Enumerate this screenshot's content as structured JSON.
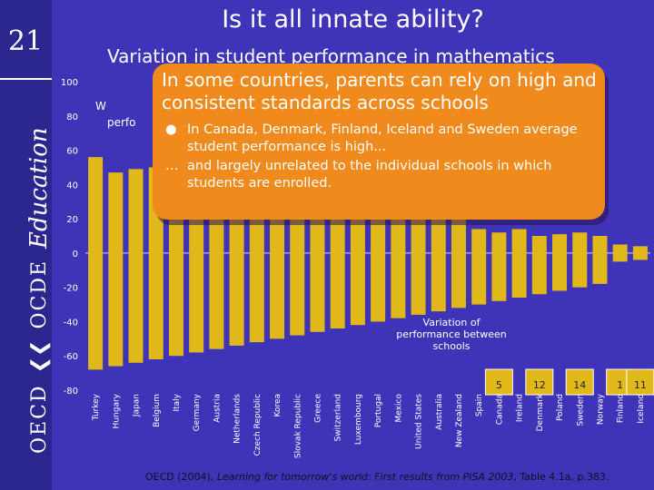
{
  "slide": {
    "number": "21",
    "title": "Is it all innate ability?",
    "subtitle": "Variation in student performance in mathematics",
    "brand_oecd": "OECD",
    "brand_ocde": "OCDE",
    "brand_education": "Education"
  },
  "callout": {
    "heading": "In some countries, parents can rely on high and consistent standards across schools",
    "items": [
      {
        "mark": "●",
        "text": "In Canada, Denmark, Finland, Iceland and Sweden average student performance is high..."
      },
      {
        "mark": "…",
        "text": "and largely unrelated to the individual schools in which students are enrolled."
      }
    ],
    "partial_behind_w": "W",
    "partial_behind_perf": "perfo"
  },
  "source": {
    "prefix": "OECD (2004), ",
    "title": "Learning for tomorrow's world: First results from PISA 2003",
    "suffix": ", Table 4.1a,  p.383."
  },
  "colors": {
    "background": "#3f34b8",
    "bar": "#e0b81a",
    "callout": "#f08a1c",
    "axis_text": "#ffffff",
    "country_text": "#ffffff"
  },
  "chart_data": {
    "type": "bar",
    "categories": [
      "Turkey",
      "Hungary",
      "Japan",
      "Belgium",
      "Italy",
      "Germany",
      "Austria",
      "Netherlands",
      "Czech Republic",
      "Korea",
      "Slovak Republic",
      "Greece",
      "Switzerland",
      "Luxembourg",
      "Portugal",
      "Mexico",
      "United States",
      "Australia",
      "New Zealand",
      "Spain",
      "Canada",
      "Ireland",
      "Denmark",
      "Poland",
      "Sweden",
      "Norway",
      "Finland",
      "Iceland"
    ],
    "values": [
      56,
      47,
      49,
      50,
      46,
      46,
      43,
      46,
      40,
      39,
      36,
      30,
      33,
      25,
      27,
      28,
      22,
      20,
      20,
      14,
      12,
      14,
      10,
      11,
      12,
      10,
      5,
      4
    ],
    "values_negative": [
      -68,
      -66,
      -64,
      -62,
      -60,
      -58,
      -56,
      -54,
      -52,
      -50,
      -48,
      -46,
      -44,
      -42,
      -40,
      -38,
      -36,
      -34,
      -32,
      -30,
      -28,
      -26,
      -24,
      -22,
      -20,
      -18,
      -5,
      -4
    ],
    "ylim": [
      -80,
      100
    ],
    "yticks": [
      100,
      80,
      60,
      40,
      20,
      0,
      -20,
      -40,
      -60,
      -80
    ],
    "annotations": [
      {
        "text": "Variation of performance between schools"
      },
      {
        "text": "5",
        "category": "Canada"
      },
      {
        "text": "12",
        "category": "Denmark"
      },
      {
        "text": "14",
        "category": "Sweden"
      },
      {
        "text": "1",
        "category": "Finland"
      },
      {
        "text": "11",
        "category": "Iceland"
      }
    ]
  }
}
